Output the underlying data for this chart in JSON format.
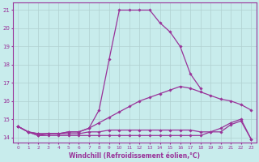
{
  "title": "",
  "xlabel": "Windchill (Refroidissement éolien,°C)",
  "ylabel": "",
  "background_color": "#c8ecec",
  "grid_color": "#b0d0d0",
  "line_color": "#993399",
  "xlim": [
    -0.5,
    23.5
  ],
  "ylim": [
    13.7,
    21.4
  ],
  "yticks": [
    14,
    15,
    16,
    17,
    18,
    19,
    20,
    21
  ],
  "xticks": [
    0,
    1,
    2,
    3,
    4,
    5,
    6,
    7,
    8,
    9,
    10,
    11,
    12,
    13,
    14,
    15,
    16,
    17,
    18,
    19,
    20,
    21,
    22,
    23
  ],
  "figsize": [
    3.2,
    2.0
  ],
  "dpi": 100,
  "series": [
    {
      "x": [
        0,
        1,
        2,
        3,
        4,
        5,
        6,
        7,
        8,
        9,
        10,
        11,
        12,
        13,
        14,
        15,
        16,
        17,
        18
      ],
      "y": [
        14.6,
        14.3,
        14.1,
        14.2,
        14.2,
        14.3,
        14.3,
        14.5,
        15.5,
        18.3,
        21.0,
        21.0,
        21.0,
        21.0,
        20.3,
        19.8,
        19.0,
        17.5,
        16.7
      ]
    },
    {
      "x": [
        0,
        1,
        2,
        3,
        4,
        5,
        6,
        7,
        8,
        9,
        10,
        11,
        12,
        13,
        14,
        15,
        16,
        17,
        18,
        19,
        20,
        21,
        22,
        23
      ],
      "y": [
        14.6,
        14.3,
        14.1,
        14.1,
        14.1,
        14.1,
        14.1,
        14.1,
        14.1,
        14.1,
        14.1,
        14.1,
        14.1,
        14.1,
        14.1,
        14.1,
        14.1,
        14.1,
        14.1,
        14.3,
        14.5,
        14.8,
        15.0,
        13.9
      ]
    },
    {
      "x": [
        0,
        1,
        2,
        3,
        4,
        5,
        6,
        7,
        8,
        9,
        10,
        11,
        12,
        13,
        14,
        15,
        16,
        17,
        18,
        19,
        20,
        21,
        22,
        23
      ],
      "y": [
        14.6,
        14.3,
        14.2,
        14.2,
        14.2,
        14.3,
        14.3,
        14.5,
        14.8,
        15.1,
        15.4,
        15.7,
        16.0,
        16.2,
        16.4,
        16.6,
        16.8,
        16.7,
        16.5,
        16.3,
        16.1,
        16.0,
        15.8,
        15.5
      ]
    },
    {
      "x": [
        0,
        1,
        2,
        3,
        4,
        5,
        6,
        7,
        8,
        9,
        10,
        11,
        12,
        13,
        14,
        15,
        16,
        17,
        18,
        19,
        20,
        21,
        22,
        23
      ],
      "y": [
        14.6,
        14.3,
        14.2,
        14.2,
        14.2,
        14.2,
        14.2,
        14.3,
        14.3,
        14.4,
        14.4,
        14.4,
        14.4,
        14.4,
        14.4,
        14.4,
        14.4,
        14.4,
        14.3,
        14.3,
        14.3,
        14.7,
        14.9,
        13.9
      ]
    }
  ]
}
